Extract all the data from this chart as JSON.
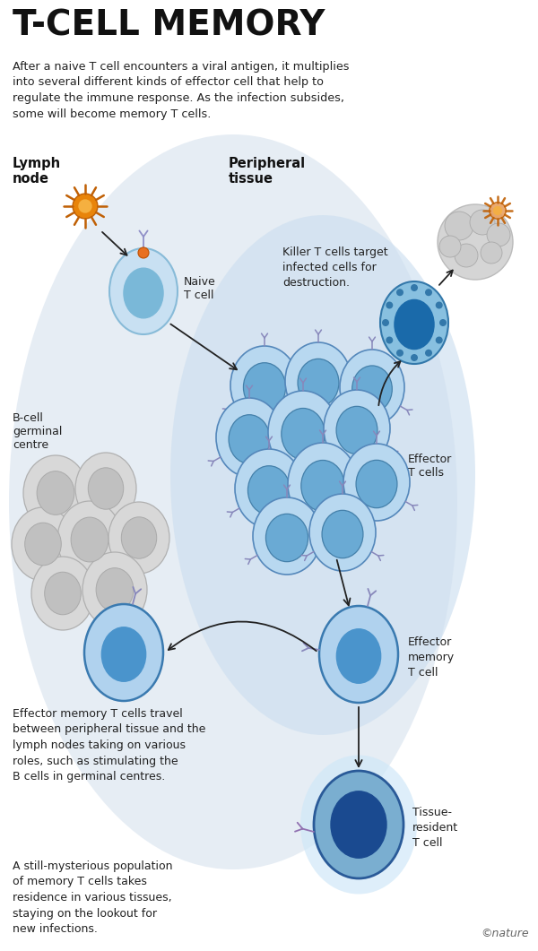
{
  "title": "T-CELL MEMORY",
  "subtitle": "After a naive T cell encounters a viral antigen, it multiplies\ninto several different kinds of effector cell that help to\nregulate the immune response. As the infection subsides,\nsome will become memory T cells.",
  "label_lymph": "Lymph\nnode",
  "label_peripheral": "Peripheral\ntissue",
  "label_bcell": "B-cell\ngerminal\ncentre",
  "label_naive": "Naive\nT cell",
  "label_effector": "Effector\nT cells",
  "label_killer_text": "Killer T cells target\ninfected cells for\ndestruction.",
  "label_effector_memory": "Effector\nmemory\nT cell",
  "label_effector_memory_text": "Effector memory T cells travel\nbetween peripheral tissue and the\nlymph nodes taking on various\nroles, such as stimulating the\nB cells in germinal centres.",
  "label_tissue_resident": "Tissue-\nresident\nT cell",
  "label_tissue_resident_text": "A still-mysterious population\nof memory T cells takes\nresidence in various tissues,\nstaying on the lookout for\nnew infections.",
  "nature_credit": "©nature",
  "bg_color": "#ffffff"
}
